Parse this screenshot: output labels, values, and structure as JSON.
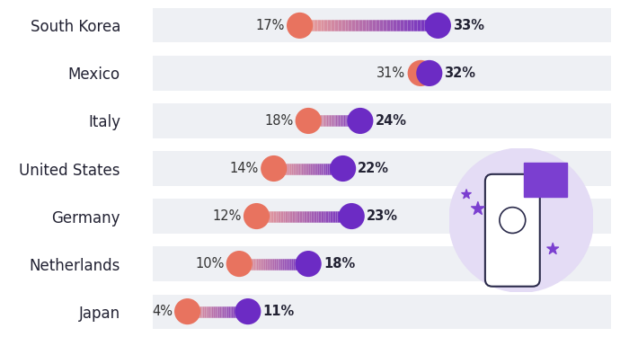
{
  "chart_data": {
    "type": "dumbbell",
    "orientation": "horizontal",
    "categories": [
      "South Korea",
      "Mexico",
      "Italy",
      "United States",
      "Germany",
      "Netherlands",
      "Japan"
    ],
    "series": [
      {
        "color": "#e8735f",
        "values": [
          17,
          31,
          18,
          14,
          12,
          10,
          4
        ],
        "value_labels": [
          "17%",
          "31%",
          "18%",
          "14%",
          "12%",
          "10%",
          "4%"
        ]
      },
      {
        "color": "#6c2bc4",
        "values": [
          33,
          32,
          24,
          22,
          23,
          18,
          11
        ],
        "value_labels": [
          "33%",
          "32%",
          "24%",
          "22%",
          "23%",
          "18%",
          "11%"
        ]
      }
    ],
    "xlim": [
      0,
      53
    ],
    "data_labels": true,
    "tick_labels": "y"
  }
}
